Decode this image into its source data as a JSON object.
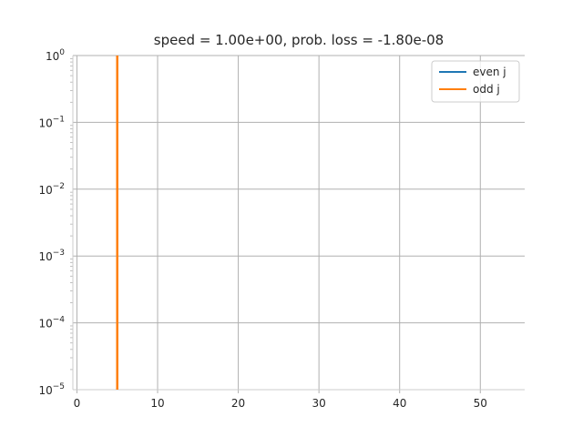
{
  "chart_data": {
    "type": "line",
    "title": "speed = 1.00e+00, prob. loss = -1.80e-08",
    "xlabel": "",
    "ylabel": "",
    "xlim": [
      -0.5,
      55.5
    ],
    "ylim": [
      1e-05,
      1
    ],
    "yscale": "log",
    "grid": true,
    "legend_position": "top-right",
    "x_ticks": [
      0,
      10,
      20,
      30,
      40,
      50
    ],
    "y_ticks": [
      {
        "value": 1e-05,
        "base": "10",
        "exp": "−5"
      },
      {
        "value": 0.0001,
        "base": "10",
        "exp": "−4"
      },
      {
        "value": 0.001,
        "base": "10",
        "exp": "−3"
      },
      {
        "value": 0.01,
        "base": "10",
        "exp": "−2"
      },
      {
        "value": 0.1,
        "base": "10",
        "exp": "−1"
      },
      {
        "value": 1,
        "base": "10",
        "exp": "0"
      }
    ],
    "series": [
      {
        "name": "even j",
        "color": "#1f77b4",
        "x": [],
        "y": []
      },
      {
        "name": "odd j",
        "color": "#ff7f0e",
        "x": [
          5,
          5
        ],
        "y": [
          1e-05,
          1
        ]
      }
    ]
  }
}
